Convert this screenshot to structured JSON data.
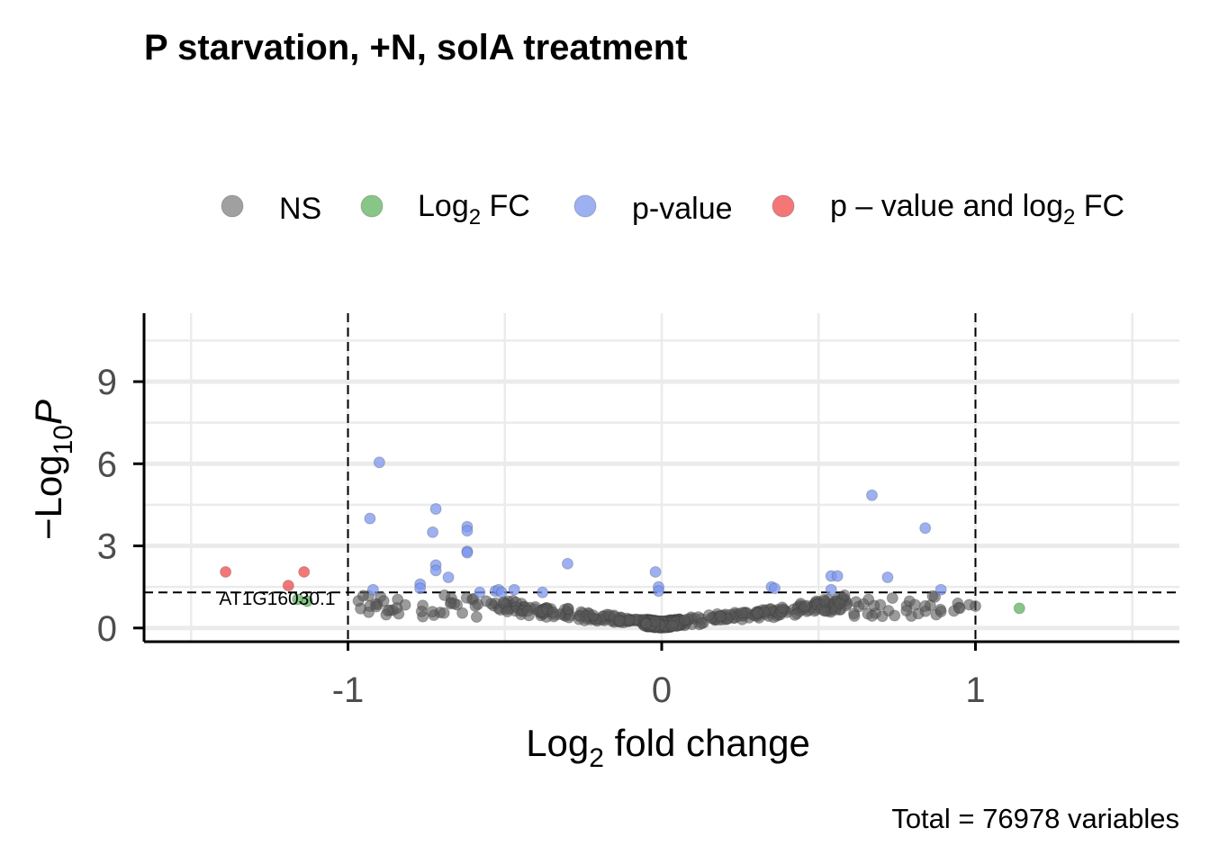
{
  "chart_data": {
    "type": "scatter",
    "title": "P starvation, +N, solA treatment",
    "xlabel_main": "Log",
    "xlabel_sub": "2",
    "xlabel_tail": " fold change",
    "ylabel_prefix": "−Log",
    "ylabel_sub": "10",
    "ylabel_italic": "P",
    "caption": "Total = 76978 variables",
    "xlim": [
      -1.65,
      1.65
    ],
    "ylim": [
      -0.5,
      11.5
    ],
    "x_ticks": [
      -1,
      0,
      1
    ],
    "x_tick_labels": [
      "-1",
      "0",
      "1"
    ],
    "y_ticks": [
      0,
      3,
      6,
      9
    ],
    "y_tick_labels": [
      "0",
      "3",
      "6",
      "9"
    ],
    "fc_cutoff": 1,
    "p_cutoff": 1.3,
    "grid": true,
    "legend_position": "top",
    "legend": [
      {
        "key": "ns",
        "label": "NS",
        "sub": "",
        "tail": "",
        "color": "#808080"
      },
      {
        "key": "fc",
        "label": "Log",
        "sub": "2",
        "tail": " FC",
        "color": "#5fb35f"
      },
      {
        "key": "p",
        "label": "p-value",
        "sub": "",
        "tail": "",
        "color": "#7b96ee"
      },
      {
        "key": "both",
        "label": "p – value and log",
        "sub": "2",
        "tail": " FC",
        "color": "#f04a4a"
      }
    ],
    "annotations": [
      {
        "text": "AT1G16030.1",
        "x": -1.04,
        "y": 0.85
      }
    ],
    "series": [
      {
        "key": "both",
        "color": "#f04a4a",
        "points": [
          [
            -1.39,
            2.05
          ],
          [
            -1.14,
            2.05
          ],
          [
            -1.19,
            1.55
          ]
        ]
      },
      {
        "key": "fc",
        "color": "#5fb35f",
        "points": [
          [
            -1.16,
            1.05
          ],
          [
            -1.13,
            0.98
          ],
          [
            1.14,
            0.72
          ]
        ]
      },
      {
        "key": "p",
        "color": "#7b96ee",
        "points": [
          [
            -0.9,
            6.05
          ],
          [
            -0.93,
            4.0
          ],
          [
            -0.72,
            4.35
          ],
          [
            -0.73,
            3.5
          ],
          [
            -0.62,
            3.7
          ],
          [
            -0.62,
            3.55
          ],
          [
            -0.62,
            2.8
          ],
          [
            -0.62,
            2.75
          ],
          [
            -0.72,
            2.3
          ],
          [
            -0.72,
            2.1
          ],
          [
            -0.68,
            1.85
          ],
          [
            -0.92,
            1.4
          ],
          [
            -0.77,
            1.6
          ],
          [
            -0.77,
            1.45
          ],
          [
            -0.58,
            1.3
          ],
          [
            -0.53,
            1.35
          ],
          [
            -0.52,
            1.4
          ],
          [
            -0.51,
            1.3
          ],
          [
            -0.47,
            1.4
          ],
          [
            -0.38,
            1.3
          ],
          [
            -0.3,
            2.35
          ],
          [
            -0.02,
            2.05
          ],
          [
            -0.01,
            1.5
          ],
          [
            -0.01,
            1.35
          ],
          [
            0.35,
            1.5
          ],
          [
            0.36,
            1.45
          ],
          [
            0.54,
            1.9
          ],
          [
            0.56,
            1.9
          ],
          [
            0.54,
            1.4
          ],
          [
            0.72,
            1.85
          ],
          [
            0.67,
            4.85
          ],
          [
            0.84,
            3.65
          ],
          [
            0.89,
            1.4
          ]
        ]
      }
    ]
  }
}
